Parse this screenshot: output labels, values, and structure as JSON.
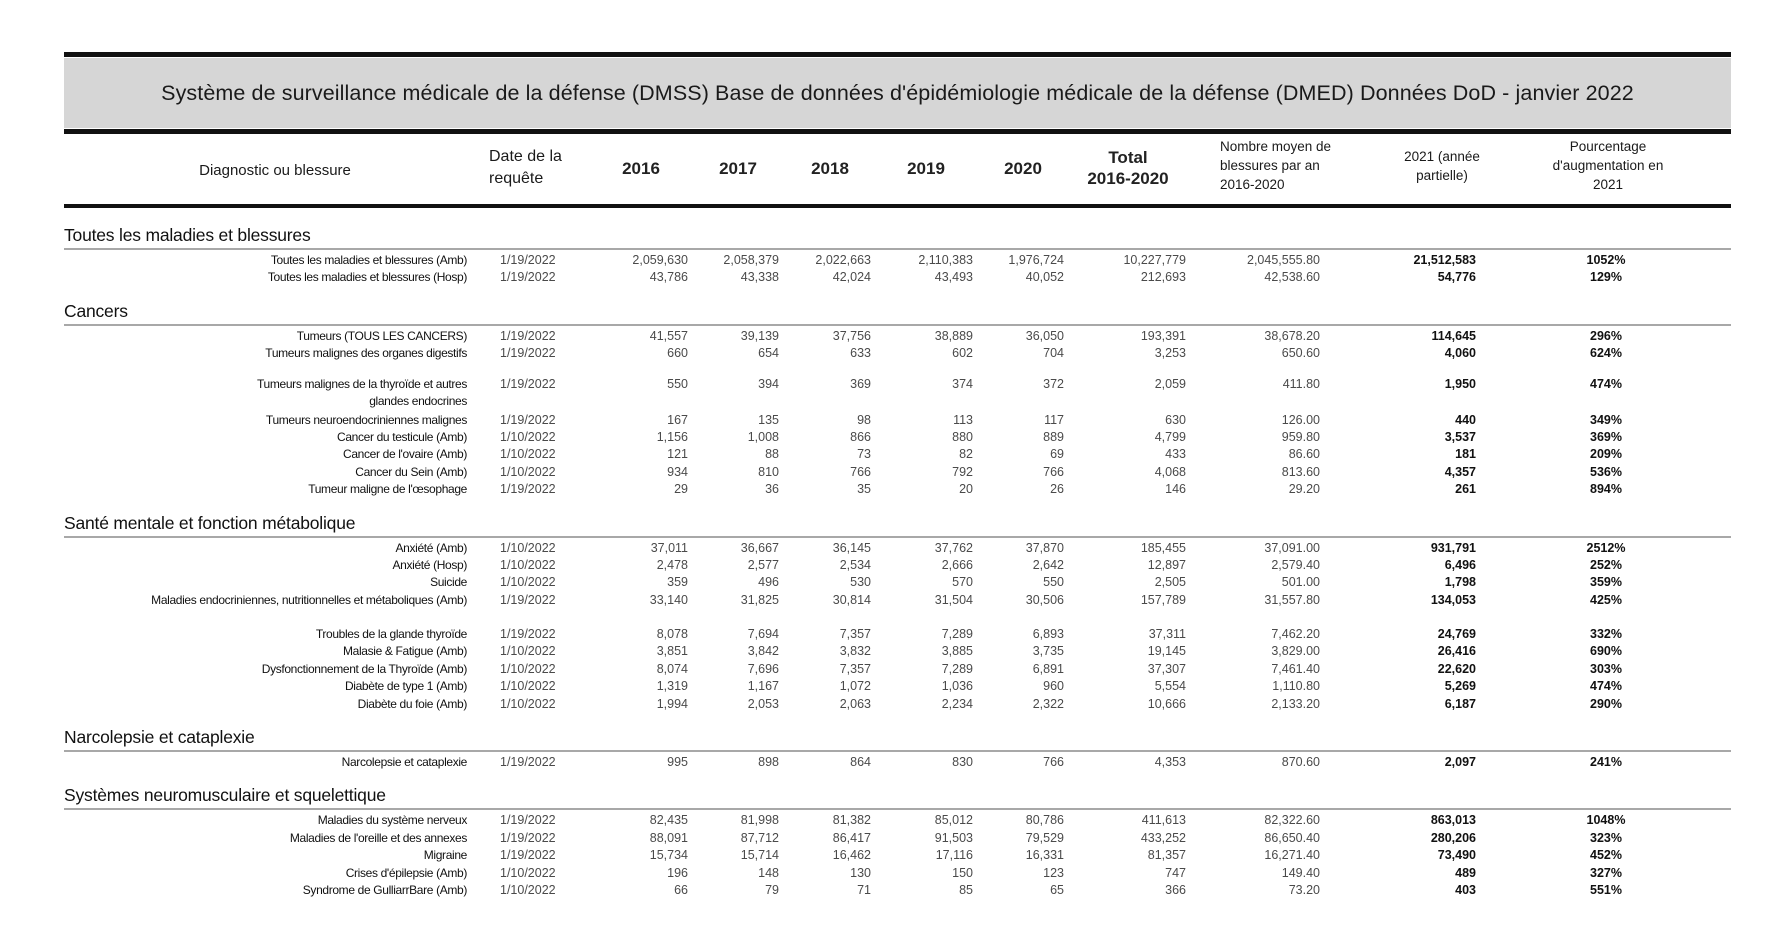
{
  "title": "Système de surveillance médicale de la défense (DMSS) Base de données d'épidémiologie médicale de la défense (DMED) Données DoD - janvier 2022",
  "headers": {
    "diagnostic": "Diagnostic ou blessure",
    "date": "Date de la\nrequête",
    "y2016": "2016",
    "y2017": "2017",
    "y2018": "2018",
    "y2019": "2019",
    "y2020": "2020",
    "total": "Total\n2016-2020",
    "avg": "Nombre moyen de\nblessures par an\n2016-2020",
    "y2021": "2021 (année\npartielle)",
    "pct": "Pourcentage\nd'augmentation en\n2021"
  },
  "sections": [
    {
      "title": "Toutes les maladies et blessures",
      "rows": [
        [
          "Toutes les maladies et blessures (Amb)",
          "1/19/2022",
          "2,059,630",
          "2,058,379",
          "2,022,663",
          "2,110,383",
          "1,976,724",
          "10,227,779",
          "2,045,555.80",
          "21,512,583",
          "1052%"
        ],
        [
          "Toutes les maladies et blessures (Hosp)",
          "1/19/2022",
          "43,786",
          "43,338",
          "42,024",
          "43,493",
          "40,052",
          "212,693",
          "42,538.60",
          "54,776",
          "129%"
        ]
      ]
    },
    {
      "title": "Cancers",
      "rows": [
        [
          "Tumeurs (TOUS LES CANCERS)",
          "1/19/2022",
          "41,557",
          "39,139",
          "37,756",
          "38,889",
          "36,050",
          "193,391",
          "38,678.20",
          "114,645",
          "296%"
        ],
        [
          "Tumeurs malignes des organes digestifs",
          "1/19/2022",
          "660",
          "654",
          "633",
          "602",
          "704",
          "3,253",
          "650.60",
          "4,060",
          "624%"
        ],
        [
          "Tumeurs malignes de la thyroïde et autres\nglandes endocrines",
          "1/19/2022",
          "550",
          "394",
          "369",
          "374",
          "372",
          "2,059",
          "411.80",
          "1,950",
          "474%"
        ],
        [
          "Tumeurs neuroendocriniennes malignes",
          "1/19/2022",
          "167",
          "135",
          "98",
          "113",
          "117",
          "630",
          "126.00",
          "440",
          "349%"
        ],
        [
          "Cancer du testicule (Amb)",
          "1/10/2022",
          "1,156",
          "1,008",
          "866",
          "880",
          "889",
          "4,799",
          "959.80",
          "3,537",
          "369%"
        ],
        [
          "Cancer de l'ovaire (Amb)",
          "1/10/2022",
          "121",
          "88",
          "73",
          "82",
          "69",
          "433",
          "86.60",
          "181",
          "209%"
        ],
        [
          "Cancer du Sein (Amb)",
          "1/10/2022",
          "934",
          "810",
          "766",
          "792",
          "766",
          "4,068",
          "813.60",
          "4,357",
          "536%"
        ],
        [
          "Tumeur maligne de l'œsophage",
          "1/19/2022",
          "29",
          "36",
          "35",
          "20",
          "26",
          "146",
          "29.20",
          "261",
          "894%"
        ]
      ]
    },
    {
      "title": "Santé mentale et fonction métabolique",
      "rows": [
        [
          "Anxiété (Amb)",
          "1/10/2022",
          "37,011",
          "36,667",
          "36,145",
          "37,762",
          "37,870",
          "185,455",
          "37,091.00",
          "931,791",
          "2512%"
        ],
        [
          "Anxiété (Hosp)",
          "1/10/2022",
          "2,478",
          "2,577",
          "2,534",
          "2,666",
          "2,642",
          "12,897",
          "2,579.40",
          "6,496",
          "252%"
        ],
        [
          "Suicide",
          "1/10/2022",
          "359",
          "496",
          "530",
          "570",
          "550",
          "2,505",
          "501.00",
          "1,798",
          "359%"
        ],
        [
          "Maladies endocriniennes, nutritionnelles et métaboliques (Amb)",
          "1/19/2022",
          "33,140",
          "31,825",
          "30,814",
          "31,504",
          "30,506",
          "157,789",
          "31,557.80",
          "134,053",
          "425%"
        ],
        [
          "Troubles de la glande thyroïde",
          "1/19/2022",
          "8,078",
          "7,694",
          "7,357",
          "7,289",
          "6,893",
          "37,311",
          "7,462.20",
          "24,769",
          "332%"
        ],
        [
          "Malasie & Fatigue (Amb)",
          "1/10/2022",
          "3,851",
          "3,842",
          "3,832",
          "3,885",
          "3,735",
          "19,145",
          "3,829.00",
          "26,416",
          "690%"
        ],
        [
          "Dysfonctionnement de la Thyroïde (Amb)",
          "1/10/2022",
          "8,074",
          "7,696",
          "7,357",
          "7,289",
          "6,891",
          "37,307",
          "7,461.40",
          "22,620",
          "303%"
        ],
        [
          "Diabète de type 1 (Amb)",
          "1/10/2022",
          "1,319",
          "1,167",
          "1,072",
          "1,036",
          "960",
          "5,554",
          "1,110.80",
          "5,269",
          "474%"
        ],
        [
          "Diabète du foie (Amb)",
          "1/10/2022",
          "1,994",
          "2,053",
          "2,063",
          "2,234",
          "2,322",
          "10,666",
          "2,133.20",
          "6,187",
          "290%"
        ]
      ]
    },
    {
      "title": "Narcolepsie et cataplexie",
      "rows": [
        [
          "Narcolepsie et cataplexie",
          "1/19/2022",
          "995",
          "898",
          "864",
          "830",
          "766",
          "4,353",
          "870.60",
          "2,097",
          "241%"
        ]
      ]
    },
    {
      "title": "Systèmes neuromusculaire et squelettique",
      "rows": [
        [
          "Maladies du système nerveux",
          "1/19/2022",
          "82,435",
          "81,998",
          "81,382",
          "85,012",
          "80,786",
          "411,613",
          "82,322.60",
          "863,013",
          "1048%"
        ],
        [
          "Maladies de l'oreille et des annexes",
          "1/19/2022",
          "88,091",
          "87,712",
          "86,417",
          "91,503",
          "79,529",
          "433,252",
          "86,650.40",
          "280,206",
          "323%"
        ],
        [
          "Migraine",
          "1/19/2022",
          "15,734",
          "15,714",
          "16,462",
          "17,116",
          "16,331",
          "81,357",
          "16,271.40",
          "73,490",
          "452%"
        ],
        [
          "Crises d'épilepsie (Amb)",
          "1/10/2022",
          "196",
          "148",
          "130",
          "150",
          "123",
          "747",
          "149.40",
          "489",
          "327%"
        ],
        [
          "Syndrome de GulliarrBare (Amb)",
          "1/10/2022",
          "66",
          "79",
          "71",
          "85",
          "65",
          "366",
          "73.20",
          "403",
          "551%"
        ]
      ]
    }
  ]
}
